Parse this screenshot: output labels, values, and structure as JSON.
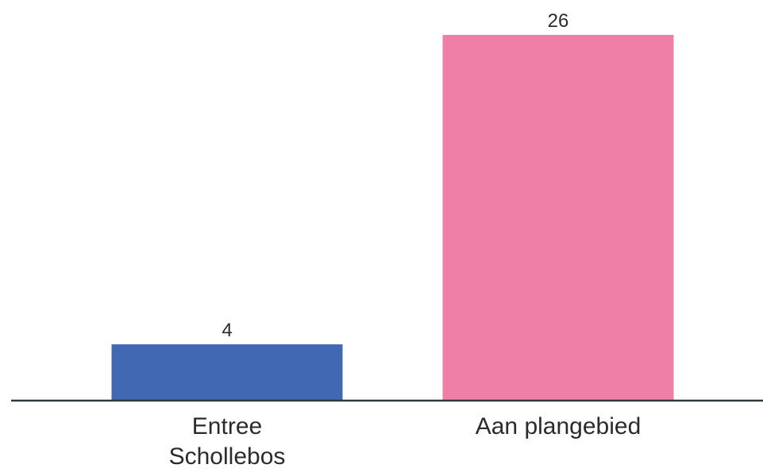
{
  "chart_data": {
    "type": "bar",
    "categories": [
      [
        "Entree",
        "Schollebos"
      ],
      [
        "Aan plangebied"
      ]
    ],
    "values": [
      4,
      26
    ],
    "data_labels": [
      "4",
      "26"
    ],
    "colors": [
      "#4169b3",
      "#f07fa8"
    ],
    "axis_color": "#2f3a40",
    "text_color": "#2b2b2b",
    "ylim": [
      0,
      26
    ],
    "grid": false,
    "legend": "none"
  }
}
